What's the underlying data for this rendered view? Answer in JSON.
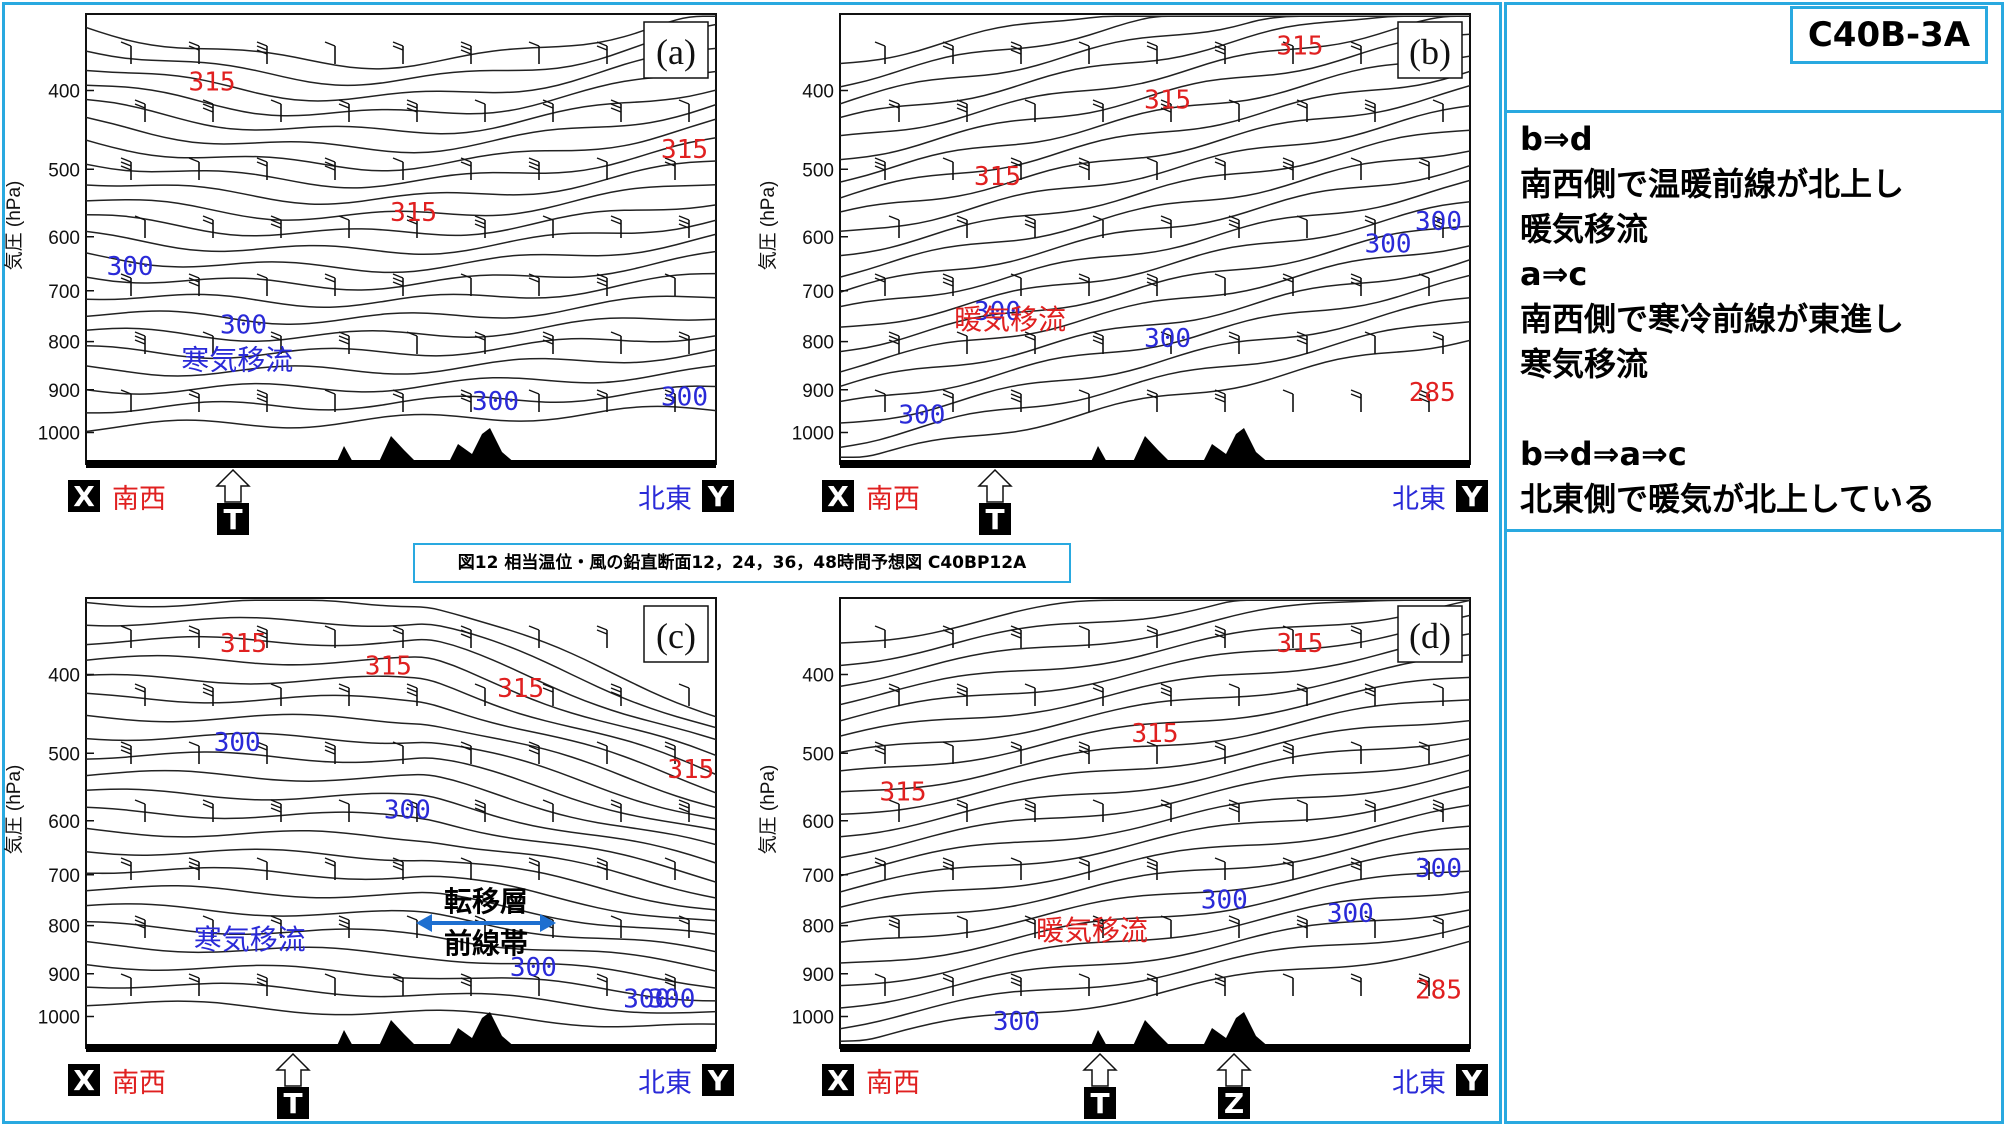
{
  "code": "C40B-3A",
  "notes": {
    "lines": [
      "b⇒d",
      "南西側で温暖前線が北上し",
      "暖気移流",
      "a⇒c",
      "南西側で寒冷前線が東進し",
      "寒気移流",
      "",
      "b⇒d⇒a⇒c",
      "北東側で暖気が北上している"
    ]
  },
  "caption": "図12 相当温位・風の鉛直断面12，24，36，48時間予想図 C40BP12A",
  "axis": {
    "ylabel": "気圧 (hPa)",
    "ticks": [
      "400",
      "500",
      "600",
      "700",
      "800",
      "900",
      "1000"
    ],
    "left_end": "X",
    "right_end": "Y",
    "left_dir": "南西",
    "right_dir": "北東",
    "marker_t": "T",
    "marker_z": "Z"
  },
  "panels": {
    "a": {
      "tag": "(a)",
      "labels": [
        "315",
        "315",
        "315",
        "300",
        "300",
        "300",
        "300"
      ],
      "annotation": "寒気移流",
      "annotation_color": "#2a2ad8"
    },
    "b": {
      "tag": "(b)",
      "labels": [
        "315",
        "315",
        "315",
        "300",
        "300",
        "300",
        "300",
        "300",
        "285"
      ],
      "annotation": "暖気移流",
      "annotation_color": "#e02020"
    },
    "c": {
      "tag": "(c)",
      "labels": [
        "315",
        "315",
        "315",
        "315",
        "300",
        "300",
        "300",
        "300",
        "300"
      ],
      "annotation": "寒気移流",
      "annotation_color": "#2a2ad8",
      "front_label_1": "転移層",
      "front_label_2": "前線帯"
    },
    "d": {
      "tag": "(d)",
      "labels": [
        "315",
        "315",
        "315",
        "300",
        "300",
        "300",
        "300",
        "285"
      ],
      "annotation": "暖気移流",
      "annotation_color": "#e02020"
    }
  },
  "colors": {
    "accent": "#29a9e0",
    "warm": "#e02020",
    "cold": "#2a2ad8",
    "front_arrow": "#1e6fd0"
  }
}
